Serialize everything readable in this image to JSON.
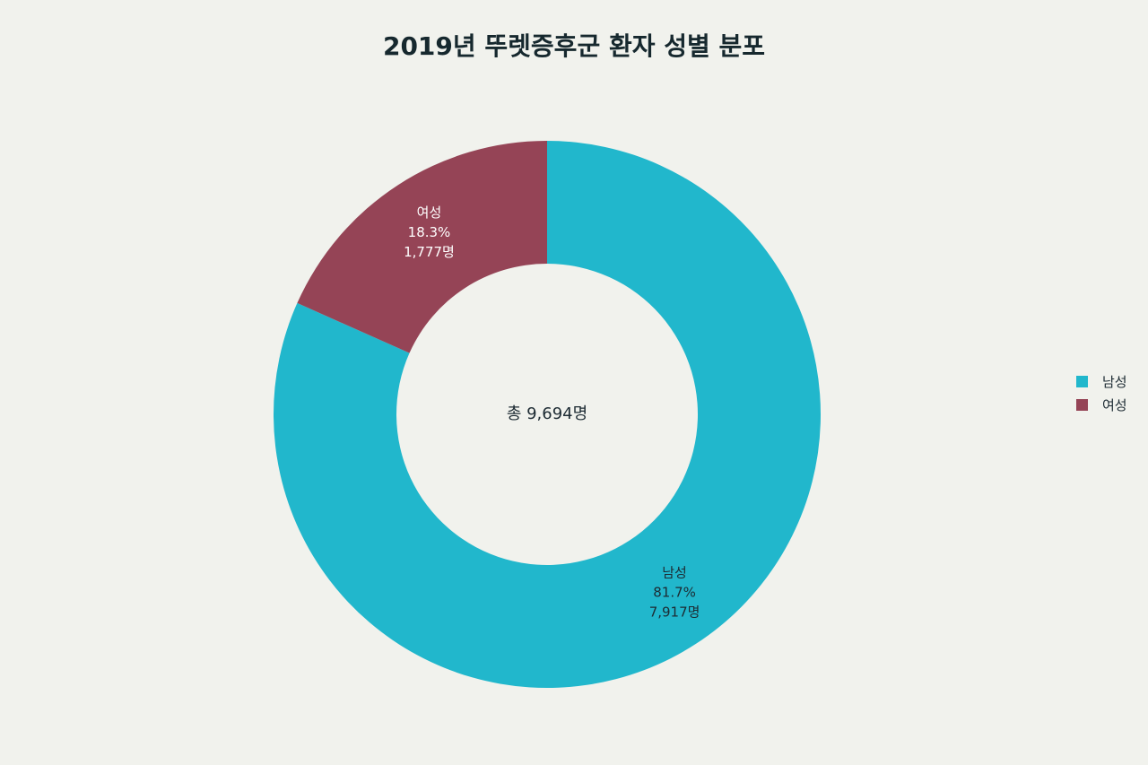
{
  "chart_data": {
    "type": "pie",
    "donut": true,
    "title": "2019년 뚜렛증후군 환자 성별 분포",
    "center_label": "총 9,694명",
    "slices": [
      {
        "name": "남성",
        "value": 7917,
        "percent_label": "81.7%",
        "count_label": "7,917명",
        "color": "#21b7cc"
      },
      {
        "name": "여성",
        "value": 1777,
        "percent_label": "18.3%",
        "count_label": "1,777명",
        "color": "#954456"
      }
    ],
    "legend": {
      "placement": "right",
      "entries": [
        "남성",
        "여성"
      ]
    }
  }
}
